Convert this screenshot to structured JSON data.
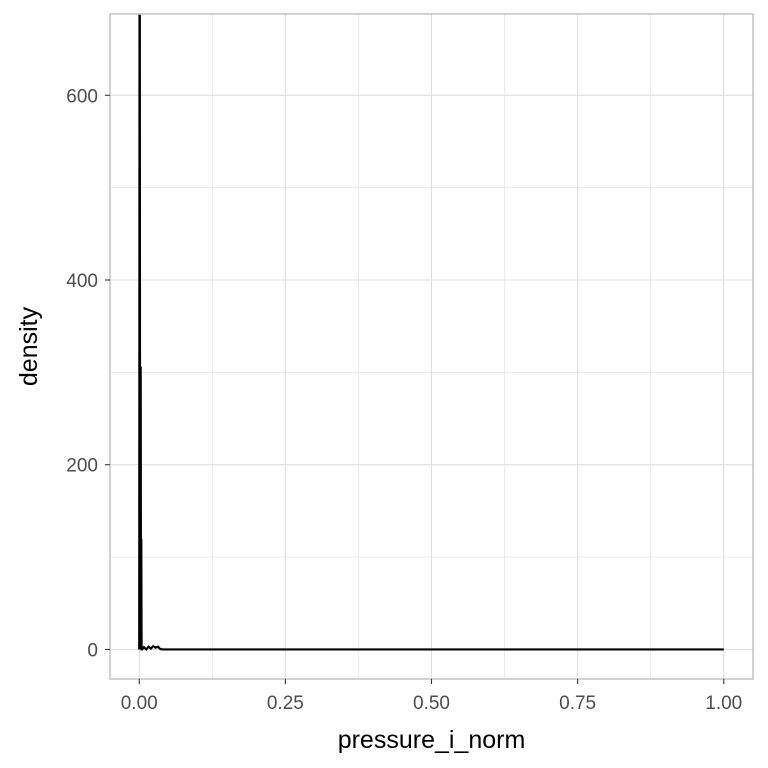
{
  "chart_data": {
    "type": "line",
    "title": "",
    "xlabel": "pressure_i_norm",
    "ylabel": "density",
    "xlim": [
      -0.05,
      1.05
    ],
    "ylim": [
      -32,
      688
    ],
    "x_ticks": [
      0,
      0.25,
      0.5,
      0.75,
      1
    ],
    "x_tick_labels": [
      "0.00",
      "0.25",
      "0.50",
      "0.75",
      "1.00"
    ],
    "y_ticks": [
      0,
      200,
      400,
      600
    ],
    "y_tick_labels": [
      "0",
      "200",
      "400",
      "600"
    ],
    "grid": true,
    "legend": "none",
    "series": [
      {
        "x": [
          0.0,
          0.0005,
          0.001,
          0.0015,
          0.002,
          0.0025,
          0.003,
          0.0035,
          0.004,
          0.005,
          0.008,
          0.012,
          0.016,
          0.02,
          0.024,
          0.028,
          0.032,
          0.036,
          0.04,
          0.05,
          0.1,
          0.25,
          0.5,
          0.75,
          1.0
        ],
        "y": [
          0,
          686,
          686,
          0,
          305,
          305,
          0,
          120,
          0,
          0,
          2.5,
          0,
          3,
          1,
          3.5,
          2,
          3,
          0.5,
          0,
          0,
          0,
          0,
          0,
          0,
          0
        ]
      }
    ],
    "colors": {
      "line": "#000000",
      "grid": "#dedede",
      "panel_border": "#b3b3b3",
      "background": "#ffffff"
    }
  }
}
